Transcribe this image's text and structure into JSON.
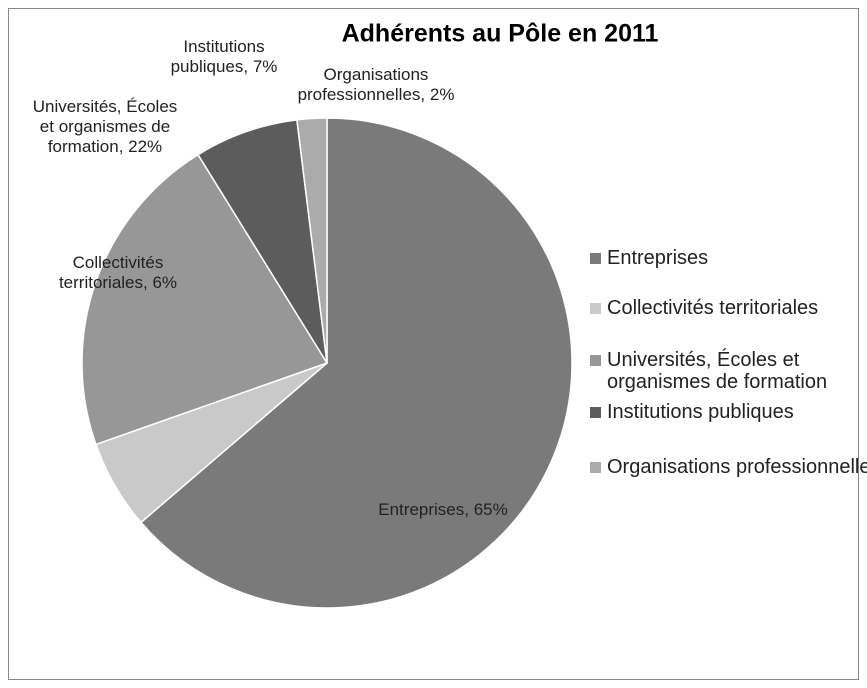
{
  "chart_data": {
    "type": "pie",
    "title": "Adhérents au Pôle en 2011",
    "categories": [
      "Entreprises",
      "Collectivités territoriales",
      "Universités, Écoles et organismes de formation",
      "Institutions publiques",
      "Organisations professionnelles"
    ],
    "values": [
      65,
      6,
      22,
      7,
      2
    ],
    "value_labels": [
      "Entreprises, 65%",
      "Collectivités territoriales, 6%",
      "Universités, Écoles et organismes de formation, 22%",
      "Institutions publiques, 7%",
      "Organisations professionnelles, 2%"
    ],
    "colors": [
      "#7a7a7a",
      "#c9c9c9",
      "#979797",
      "#5c5c5c",
      "#ababab"
    ],
    "legend": "right"
  }
}
